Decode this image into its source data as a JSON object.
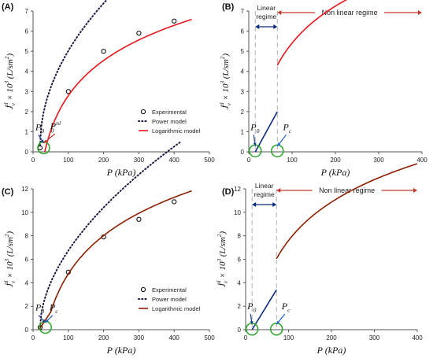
{
  "figure": {
    "colors": {
      "axis": "#555555",
      "red_model": "#e8161b",
      "dark_red_model": "#8b2000",
      "blue_line": "#0b2a7a",
      "power_dots": "#1a1a40",
      "marker_circle": "#2aa52a",
      "red_arrow": "#c0392b",
      "blue_arrow": "#1f5fd0",
      "guide_dash": "#b0b0b0"
    }
  },
  "chart_data": [
    {
      "type": "line",
      "panel": "A",
      "panel_label": "(A)",
      "xlabel": "P (kPa)",
      "ylabel": "J_v^nl × 10^3 (L/sm^2)",
      "xlim": [
        0,
        500
      ],
      "ylim": [
        0,
        7
      ],
      "xticks": [
        "0",
        "100",
        "200",
        "300",
        "400",
        "500"
      ],
      "yticks": [
        "0",
        "1",
        "2",
        "3",
        "4",
        "5",
        "6",
        "7"
      ],
      "legend": {
        "position": "bottom-right",
        "entries": [
          "Experimental",
          "Power model",
          "Logarithmic model"
        ]
      },
      "series": [
        {
          "name": "Experimental",
          "style": "circles",
          "x": [
            20,
            100,
            200,
            300,
            400
          ],
          "y": [
            0.2,
            3.0,
            5.0,
            5.9,
            6.5
          ]
        },
        {
          "name": "Power model",
          "style": "dotted",
          "color_key": "power_dots",
          "model": "power",
          "x0": 20,
          "a": 0.3,
          "k": 0.528,
          "b": 0.5,
          "xmax": 420
        },
        {
          "name": "Logarithmic model",
          "style": "solid",
          "color_key": "red_model",
          "model": "log",
          "x0": 33,
          "k": 2.52,
          "xmax": 450
        }
      ],
      "annotations": [
        {
          "kind": "circle",
          "x": 30,
          "y": 0.2
        },
        {
          "kind": "label",
          "text": "P_0",
          "x": 20,
          "y": 1.0,
          "arrow_to": [
            20,
            0.3
          ],
          "color_key": "blue_arrow"
        },
        {
          "kind": "label",
          "text": "P_0^nl",
          "x": 62,
          "y": 1.05,
          "arrow_to": [
            35,
            0.25
          ],
          "color_key": "red_arrow"
        }
      ]
    },
    {
      "type": "line",
      "panel": "B",
      "panel_label": "(B)",
      "xlabel": "P (kPa)",
      "ylabel": "J_v^nl × 10^3 (L/sm^2)",
      "xlim": [
        0,
        400
      ],
      "ylim": [
        0,
        7
      ],
      "xticks": [
        "0",
        "100",
        "200",
        "300",
        "400"
      ],
      "yticks": [
        "0",
        "1",
        "2",
        "3",
        "4",
        "5",
        "6",
        "7"
      ],
      "series": [
        {
          "name": "Linear regime",
          "style": "solid",
          "color_key": "blue_line",
          "model": "linear",
          "x": [
            15,
            66
          ],
          "y": [
            0,
            2.0
          ]
        },
        {
          "name": "Non linear regime",
          "style": "solid",
          "color_key": "red_model",
          "model": "log",
          "x0": 13,
          "k": 2.65,
          "xstart": 66,
          "xmax": 400
        }
      ],
      "regimes": [
        {
          "label": "Linear regime",
          "x": [
            15,
            66
          ]
        },
        {
          "label": "Non linear regime",
          "x": [
            66,
            400
          ]
        }
      ],
      "annotations": [
        {
          "kind": "circle",
          "x": 15,
          "y": 0.05
        },
        {
          "kind": "circle",
          "x": 66,
          "y": 0.05
        },
        {
          "kind": "label",
          "text": "P_0",
          "x": 15,
          "y": 1.0
        },
        {
          "kind": "label",
          "text": "P_c",
          "x": 90,
          "y": 1.0
        }
      ]
    },
    {
      "type": "line",
      "panel": "C",
      "panel_label": "(C)",
      "xlabel": "P (kPa)",
      "ylabel": "J_v^nl × 10^3 (L/sm^2)",
      "xlim": [
        0,
        500
      ],
      "ylim": [
        0,
        12
      ],
      "xticks": [
        "0",
        "100",
        "200",
        "300",
        "400",
        "500"
      ],
      "yticks": [
        "0",
        "2",
        "4",
        "6",
        "8",
        "10",
        "12"
      ],
      "legend": {
        "position": "bottom-right",
        "entries": [
          "Experimental",
          "Power model",
          "Logarithmic model"
        ]
      },
      "series": [
        {
          "name": "Experimental",
          "style": "circles",
          "x": [
            20,
            100,
            200,
            300,
            400
          ],
          "y": [
            0.2,
            4.9,
            7.9,
            9.4,
            10.9
          ]
        },
        {
          "name": "Power model",
          "style": "dotted",
          "color_key": "power_dots",
          "model": "power",
          "x0": 20,
          "a": 0.2,
          "k": 0.587,
          "b": 0.55,
          "xmax": 420
        },
        {
          "name": "Logarithmic model",
          "style": "solid",
          "color_key": "dark_red_model",
          "model": "log_linear",
          "x0": 17,
          "k": 4.7,
          "xs": 50,
          "ys": 1.5,
          "xmax": 450
        }
      ],
      "annotations": [
        {
          "kind": "circle",
          "x": 35,
          "y": 0.2
        },
        {
          "kind": "label",
          "text": "P_0",
          "x": 20,
          "y": 1.5
        },
        {
          "kind": "label",
          "text": "P_c",
          "x": 60,
          "y": 1.5
        }
      ]
    },
    {
      "type": "line",
      "panel": "D",
      "panel_label": "(D)",
      "xlabel": "P (kPa)",
      "ylabel": "J_v^nl × 10^3 (L/sm^2)",
      "xlim": [
        0,
        400
      ],
      "ylim": [
        0,
        12
      ],
      "xticks": [
        "0",
        "100",
        "200",
        "300",
        "400"
      ],
      "yticks": [
        "0",
        "2",
        "4",
        "6",
        "8",
        "10",
        "12"
      ],
      "series": [
        {
          "name": "Linear regime",
          "style": "solid",
          "color_key": "blue_line",
          "model": "linear",
          "x": [
            15,
            72
          ],
          "y": [
            0,
            3.4
          ]
        },
        {
          "name": "Non linear regime",
          "style": "solid",
          "color_key": "dark_red_model",
          "model": "log",
          "x0": 20,
          "k": 4.72,
          "xstart": 72,
          "xmax": 400
        }
      ],
      "regimes": [
        {
          "label": "Linear regime",
          "x": [
            15,
            72
          ]
        },
        {
          "label": "Non linear regime",
          "x": [
            72,
            400
          ]
        }
      ],
      "annotations": [
        {
          "kind": "circle",
          "x": 15,
          "y": 0.05
        },
        {
          "kind": "circle",
          "x": 72,
          "y": 0.05
        },
        {
          "kind": "label",
          "text": "P_0",
          "x": 15,
          "y": 1.6
        },
        {
          "kind": "label",
          "text": "P_c",
          "x": 95,
          "y": 1.6
        }
      ]
    }
  ]
}
